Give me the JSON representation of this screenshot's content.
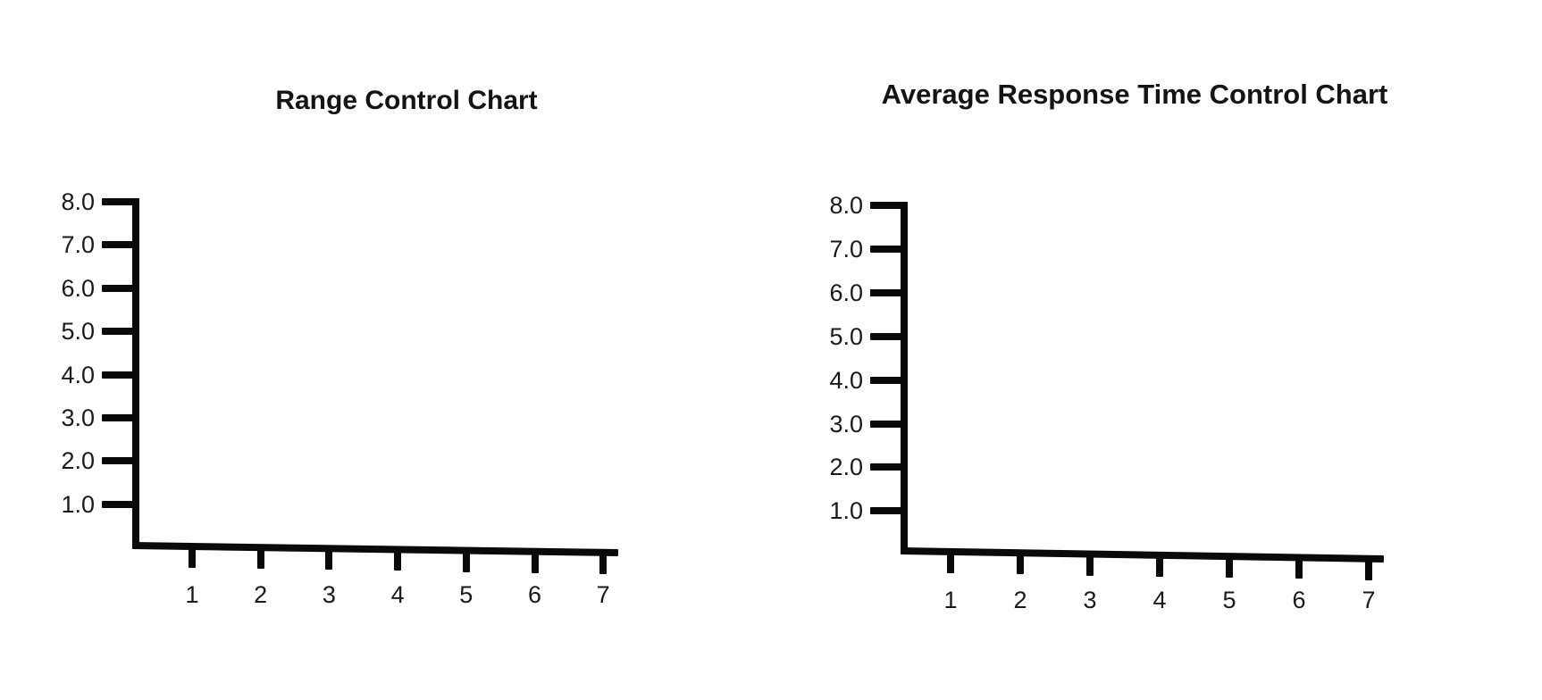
{
  "page": {
    "background": "#ffffff",
    "axis_color": "#0a0a0a",
    "text_color": "#1a1a1a"
  },
  "charts": [
    {
      "title": "Range Control Chart",
      "y_tick_labels": [
        "8.0",
        "7.0",
        "6.0",
        "5.0",
        "4.0",
        "3.0",
        "2.0",
        "1.0"
      ],
      "x_tick_labels": [
        "1",
        "2",
        "3",
        "4",
        "5",
        "6",
        "7"
      ]
    },
    {
      "title": "Average Response Time Control Chart",
      "y_tick_labels": [
        "8.0",
        "7.0",
        "6.0",
        "5.0",
        "4.0",
        "3.0",
        "2.0",
        "1.0"
      ],
      "x_tick_labels": [
        "1",
        "2",
        "3",
        "4",
        "5",
        "6",
        "7"
      ]
    }
  ],
  "chart_data": [
    {
      "type": "line",
      "title": "Range Control Chart",
      "xlabel": "",
      "ylabel": "",
      "x_tick_labels": [
        "1",
        "2",
        "3",
        "4",
        "5",
        "6",
        "7"
      ],
      "y_tick_labels": [
        "8.0",
        "7.0",
        "6.0",
        "5.0",
        "4.0",
        "3.0",
        "2.0",
        "1.0"
      ],
      "xlim": [
        0,
        7.5
      ],
      "ylim": [
        0,
        8.2
      ],
      "x": [],
      "series": [],
      "grid": false,
      "legend": false
    },
    {
      "type": "line",
      "title": "Average Response Time Control Chart",
      "xlabel": "",
      "ylabel": "",
      "x_tick_labels": [
        "1",
        "2",
        "3",
        "4",
        "5",
        "6",
        "7"
      ],
      "y_tick_labels": [
        "8.0",
        "7.0",
        "6.0",
        "5.0",
        "4.0",
        "3.0",
        "2.0",
        "1.0"
      ],
      "xlim": [
        0,
        7.5
      ],
      "ylim": [
        0,
        8.2
      ],
      "x": [],
      "series": [],
      "grid": false,
      "legend": false
    }
  ]
}
